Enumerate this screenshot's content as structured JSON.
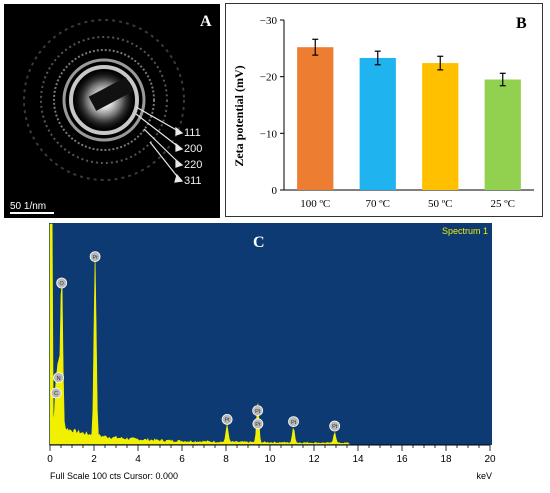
{
  "panel_a": {
    "label": "A",
    "ring_labels": [
      "111",
      "200",
      "220",
      "311"
    ],
    "scale_bar": "50 1/nm"
  },
  "chart_data": [
    {
      "panel": "B",
      "type": "bar",
      "title": "",
      "ylabel": "Zeta potential (mV)",
      "xlabel": "",
      "categories": [
        "100 ºC",
        "70 ºC",
        "50 ºC",
        "25 ºC"
      ],
      "values": [
        -25.2,
        -23.3,
        -22.4,
        -19.5
      ],
      "errors": [
        1.4,
        1.2,
        1.2,
        1.1
      ],
      "colors": [
        "#ED7D31",
        "#1FB4F0",
        "#FFC000",
        "#92D050"
      ],
      "ylim": [
        0,
        -30
      ],
      "yticks": [
        "0",
        "−10",
        "−20",
        "−30"
      ],
      "grid": false
    },
    {
      "panel": "C",
      "type": "area",
      "title": "Spectrum 1",
      "xlabel": "keV",
      "ylabel": "",
      "xlim": [
        0,
        20
      ],
      "xticks": [
        "0",
        "2",
        "4",
        "6",
        "8",
        "10",
        "12",
        "14",
        "16",
        "18",
        "20"
      ],
      "footer": "Full Scale 100 cts Cursor: 0.000",
      "peaks": [
        {
          "label": "C",
          "x": 0.28,
          "y": 20
        },
        {
          "label": "N",
          "x": 0.39,
          "y": 27
        },
        {
          "label": "O",
          "x": 0.53,
          "y": 70
        },
        {
          "label": "Pt",
          "x": 2.05,
          "y": 82
        },
        {
          "label": "Pt",
          "x": 8.05,
          "y": 8
        },
        {
          "label": "Pt",
          "x": 9.45,
          "y": 6
        },
        {
          "label": "Pt",
          "x": 9.44,
          "y": 12
        },
        {
          "label": "Pt",
          "x": 11.07,
          "y": 7
        },
        {
          "label": "Pt",
          "x": 12.94,
          "y": 5
        }
      ],
      "colors": {
        "background": "#0D3A73",
        "fill": "#F0F000",
        "axis_text": "#000000"
      }
    }
  ],
  "panel_b": {
    "label": "B"
  },
  "panel_c": {
    "label": "C"
  }
}
